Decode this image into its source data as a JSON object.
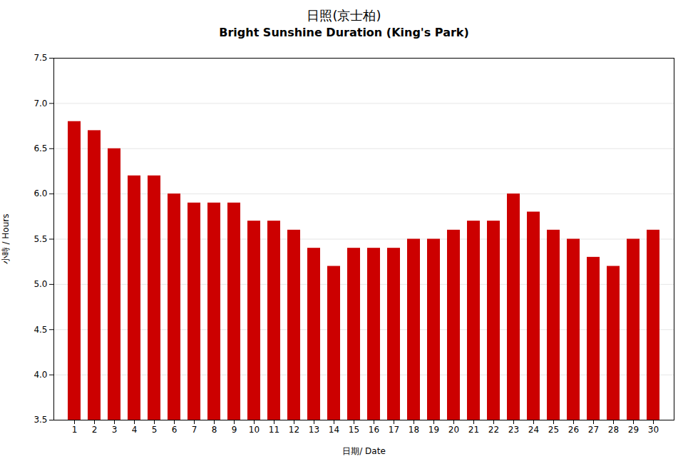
{
  "chart_data": {
    "type": "bar",
    "title": "日照(京士柏)",
    "subtitle": "Bright Sunshine  Duration  (King's Park)",
    "xlabel": "日期/ Date",
    "ylabel": "小時 / Hours",
    "categories": [
      1,
      2,
      3,
      4,
      5,
      6,
      7,
      8,
      9,
      10,
      11,
      12,
      13,
      14,
      15,
      16,
      17,
      18,
      19,
      20,
      21,
      22,
      23,
      24,
      25,
      26,
      27,
      28,
      29,
      30
    ],
    "values": [
      6.8,
      6.7,
      6.5,
      6.2,
      6.2,
      6.0,
      5.9,
      5.9,
      5.9,
      5.7,
      5.7,
      5.6,
      5.4,
      5.2,
      5.4,
      5.4,
      5.4,
      5.5,
      5.5,
      5.6,
      5.7,
      5.7,
      6.0,
      5.8,
      5.6,
      5.5,
      5.3,
      5.2,
      5.5,
      5.6
    ],
    "color": "#CC0000",
    "ylim": [
      3.5,
      7.5
    ],
    "yticks": [
      3.5,
      {
        "value": 4,
        "label": "4.0"
      },
      4.5,
      {
        "value": 5,
        "label": "5.0"
      },
      5.5,
      {
        "value": 6,
        "label": "6.0"
      },
      6.5,
      {
        "value": 7,
        "label": "7.0"
      },
      7.5
    ],
    "grid": true
  }
}
